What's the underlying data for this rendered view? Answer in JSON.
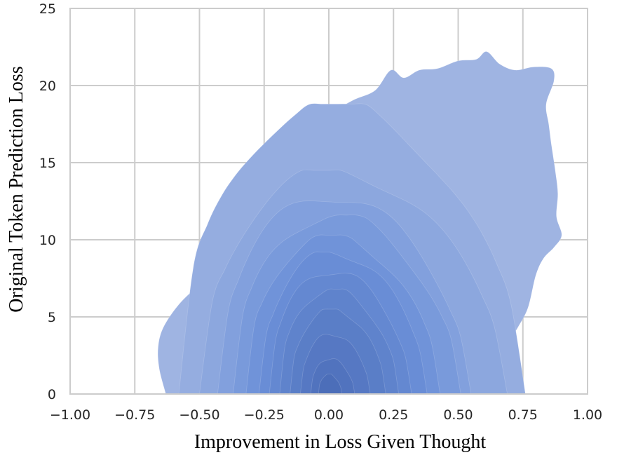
{
  "chart_data": {
    "type": "kde-contour",
    "title": "",
    "xlabel": "Improvement in Loss Given Thought",
    "ylabel": "Original Token Prediction Loss",
    "xlim": [
      -1.0,
      1.0
    ],
    "ylim": [
      0,
      25
    ],
    "x_ticks": [
      -1.0,
      -0.75,
      -0.5,
      -0.25,
      0.0,
      0.25,
      0.5,
      0.75,
      1.0
    ],
    "x_tick_labels": [
      "−1.00",
      "−0.75",
      "−0.50",
      "−0.25",
      "0.00",
      "0.25",
      "0.50",
      "0.75",
      "1.00"
    ],
    "y_ticks": [
      0,
      5,
      10,
      15,
      20,
      25
    ],
    "y_tick_labels": [
      "0",
      "5",
      "10",
      "15",
      "20",
      "25"
    ],
    "grid": true,
    "legend": "none",
    "base_color": "#6b90d8",
    "density_peak": {
      "x": 0.0,
      "y": 0.5
    },
    "contour_levels": [
      {
        "level": 1,
        "xmin": -0.65,
        "xmax": 0.9,
        "ymax": 22.2
      },
      {
        "level": 2,
        "xmin": -0.58,
        "xmax": 0.76,
        "ymax": 18.8
      },
      {
        "level": 3,
        "xmin": -0.5,
        "xmax": 0.69,
        "ymax": 14.5
      },
      {
        "level": 4,
        "xmin": -0.43,
        "xmax": 0.55,
        "ymax": 12.9
      },
      {
        "level": 5,
        "xmin": -0.37,
        "xmax": 0.51,
        "ymax": 11.6
      },
      {
        "level": 6,
        "xmin": -0.32,
        "xmax": 0.43,
        "ymax": 10.3
      },
      {
        "level": 7,
        "xmin": -0.27,
        "xmax": 0.38,
        "ymax": 9.2
      },
      {
        "level": 8,
        "xmin": -0.23,
        "xmax": 0.32,
        "ymax": 8.0
      },
      {
        "level": 9,
        "xmin": -0.19,
        "xmax": 0.27,
        "ymax": 6.8
      },
      {
        "level": 10,
        "xmin": -0.15,
        "xmax": 0.22,
        "ymax": 5.5
      },
      {
        "level": 11,
        "xmin": -0.11,
        "xmax": 0.16,
        "ymax": 3.9
      },
      {
        "level": 12,
        "xmin": -0.07,
        "xmax": 0.1,
        "ymax": 2.3
      },
      {
        "level": 13,
        "xmin": -0.04,
        "xmax": 0.05,
        "ymax": 1.3
      }
    ]
  }
}
